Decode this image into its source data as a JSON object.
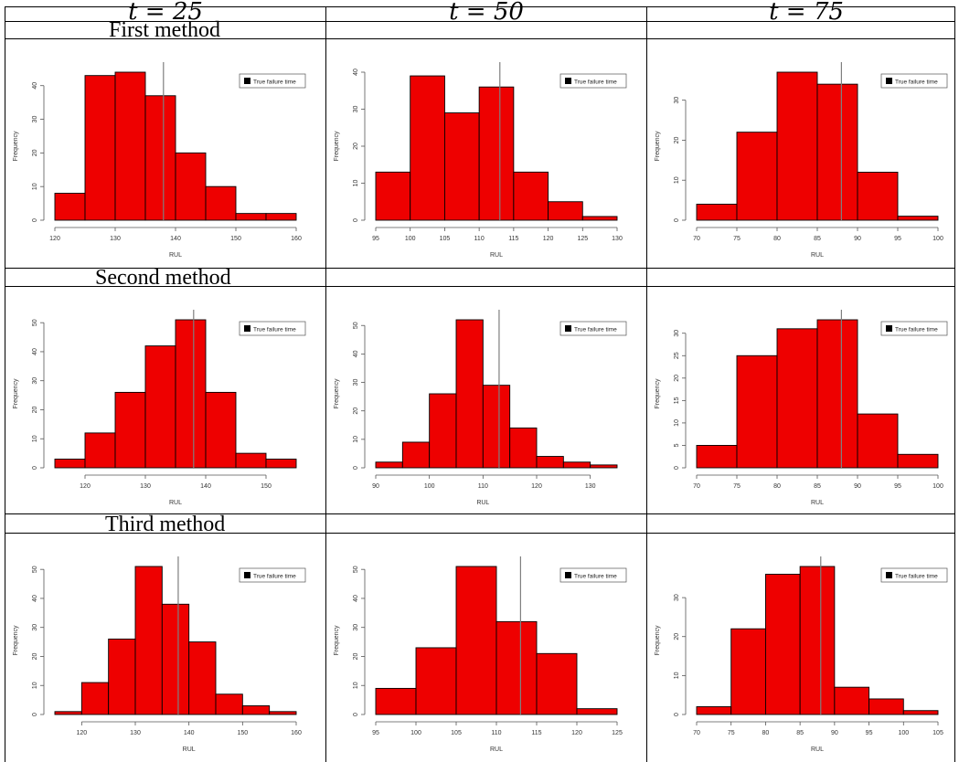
{
  "column_headers": [
    "t = 25",
    "t = 50",
    "t = 75"
  ],
  "row_headers": [
    "First method",
    "Second method",
    "Third method"
  ],
  "colors": {
    "bar_fill": "#ee0000",
    "bar_stroke": "#000000",
    "true_line": "#7f7f7f"
  },
  "chart_data": [
    {
      "type": "bar",
      "row": 0,
      "col": 0,
      "xlabel": "RUL",
      "ylabel": "Frequency",
      "legend": "True failure time",
      "legend_position": "top-right",
      "bin_width": 5,
      "bin_starts": [
        120,
        125,
        130,
        135,
        140,
        145,
        150,
        155
      ],
      "values": [
        8,
        43,
        44,
        37,
        20,
        10,
        2,
        2
      ],
      "xticks": [
        120,
        130,
        140,
        150,
        160
      ],
      "xlim": [
        120,
        160
      ],
      "yticks": [
        0,
        10,
        20,
        30,
        40
      ],
      "ylim": [
        0,
        44
      ],
      "true_failure_time": 138
    },
    {
      "type": "bar",
      "row": 0,
      "col": 1,
      "xlabel": "RUL",
      "ylabel": "Frequency",
      "legend": "True failure time",
      "legend_position": "top-right",
      "bin_width": 5,
      "bin_starts": [
        95,
        100,
        105,
        110,
        115,
        120,
        125
      ],
      "values": [
        13,
        39,
        29,
        36,
        13,
        5,
        1
      ],
      "xticks": [
        95,
        100,
        105,
        110,
        115,
        120,
        125,
        130
      ],
      "xlim": [
        95,
        130
      ],
      "yticks": [
        0,
        10,
        20,
        30,
        40
      ],
      "ylim": [
        0,
        40
      ],
      "true_failure_time": 113
    },
    {
      "type": "bar",
      "row": 0,
      "col": 2,
      "xlabel": "RUL",
      "ylabel": "Frequency",
      "legend": "True failure time",
      "legend_position": "top-right",
      "bin_width": 5,
      "bin_starts": [
        70,
        75,
        80,
        85,
        90,
        95
      ],
      "values": [
        4,
        22,
        37,
        34,
        12,
        1
      ],
      "xticks": [
        70,
        75,
        80,
        85,
        90,
        95,
        100
      ],
      "xlim": [
        70,
        100
      ],
      "yticks": [
        0,
        10,
        20,
        30
      ],
      "ylim": [
        0,
        37
      ],
      "true_failure_time": 88
    },
    {
      "type": "bar",
      "row": 1,
      "col": 0,
      "xlabel": "RUL",
      "ylabel": "Frequency",
      "legend": "True failure time",
      "legend_position": "top-right",
      "bin_width": 5,
      "bin_starts": [
        115,
        120,
        125,
        130,
        135,
        140,
        145,
        150
      ],
      "values": [
        3,
        12,
        26,
        42,
        51,
        26,
        5,
        3
      ],
      "xticks": [
        120,
        130,
        140,
        150
      ],
      "xlim": [
        115,
        155
      ],
      "yticks": [
        0,
        10,
        20,
        30,
        40,
        50
      ],
      "ylim": [
        0,
        51
      ],
      "true_failure_time": 138
    },
    {
      "type": "bar",
      "row": 1,
      "col": 1,
      "xlabel": "RUL",
      "ylabel": "Frequency",
      "legend": "True failure time",
      "legend_position": "top-right",
      "bin_width": 5,
      "bin_starts": [
        90,
        95,
        100,
        105,
        110,
        115,
        120,
        125,
        130
      ],
      "values": [
        2,
        9,
        26,
        52,
        29,
        14,
        4,
        2,
        1
      ],
      "xticks": [
        90,
        100,
        110,
        120,
        130
      ],
      "xlim": [
        90,
        135
      ],
      "yticks": [
        0,
        10,
        20,
        30,
        40,
        50
      ],
      "ylim": [
        0,
        52
      ],
      "true_failure_time": 113
    },
    {
      "type": "bar",
      "row": 1,
      "col": 2,
      "xlabel": "RUL",
      "ylabel": "Frequency",
      "legend": "True failure time",
      "legend_position": "top-right",
      "bin_width": 5,
      "bin_starts": [
        70,
        75,
        80,
        85,
        90,
        95
      ],
      "values": [
        5,
        25,
        31,
        33,
        12,
        3
      ],
      "xticks": [
        70,
        75,
        80,
        85,
        90,
        95,
        100
      ],
      "xlim": [
        70,
        100
      ],
      "yticks": [
        0,
        5,
        10,
        15,
        20,
        25,
        30
      ],
      "ylim": [
        0,
        33
      ],
      "true_failure_time": 88
    },
    {
      "type": "bar",
      "row": 2,
      "col": 0,
      "xlabel": "RUL",
      "ylabel": "Frequency",
      "legend": "True failure time",
      "legend_position": "top-right",
      "bin_width": 5,
      "bin_starts": [
        115,
        120,
        125,
        130,
        135,
        140,
        145,
        150,
        155
      ],
      "values": [
        1,
        11,
        26,
        51,
        38,
        25,
        7,
        3,
        1
      ],
      "xticks": [
        120,
        130,
        140,
        150,
        160
      ],
      "xlim": [
        115,
        160
      ],
      "yticks": [
        0,
        10,
        20,
        30,
        40,
        50
      ],
      "ylim": [
        0,
        51
      ],
      "true_failure_time": 138
    },
    {
      "type": "bar",
      "row": 2,
      "col": 1,
      "xlabel": "RUL",
      "ylabel": "Frequency",
      "legend": "True failure time",
      "legend_position": "top-right",
      "bin_width": 5,
      "bin_starts": [
        95,
        100,
        105,
        110,
        115,
        120
      ],
      "values": [
        9,
        23,
        51,
        32,
        21,
        2
      ],
      "xticks": [
        95,
        100,
        105,
        110,
        115,
        120,
        125
      ],
      "xlim": [
        95,
        125
      ],
      "yticks": [
        0,
        10,
        20,
        30,
        40,
        50
      ],
      "ylim": [
        0,
        51
      ],
      "true_failure_time": 113
    },
    {
      "type": "bar",
      "row": 2,
      "col": 2,
      "xlabel": "RUL",
      "ylabel": "Frequency",
      "legend": "True failure time",
      "legend_position": "top-right",
      "bin_width": 5,
      "bin_starts": [
        70,
        75,
        80,
        85,
        90,
        95,
        100
      ],
      "values": [
        2,
        22,
        36,
        38,
        7,
        4,
        1
      ],
      "xticks": [
        70,
        75,
        80,
        85,
        90,
        95,
        100,
        105
      ],
      "xlim": [
        70,
        105
      ],
      "yticks": [
        0,
        10,
        20,
        30
      ],
      "ylim": [
        0,
        38
      ],
      "true_failure_time": 88
    }
  ]
}
